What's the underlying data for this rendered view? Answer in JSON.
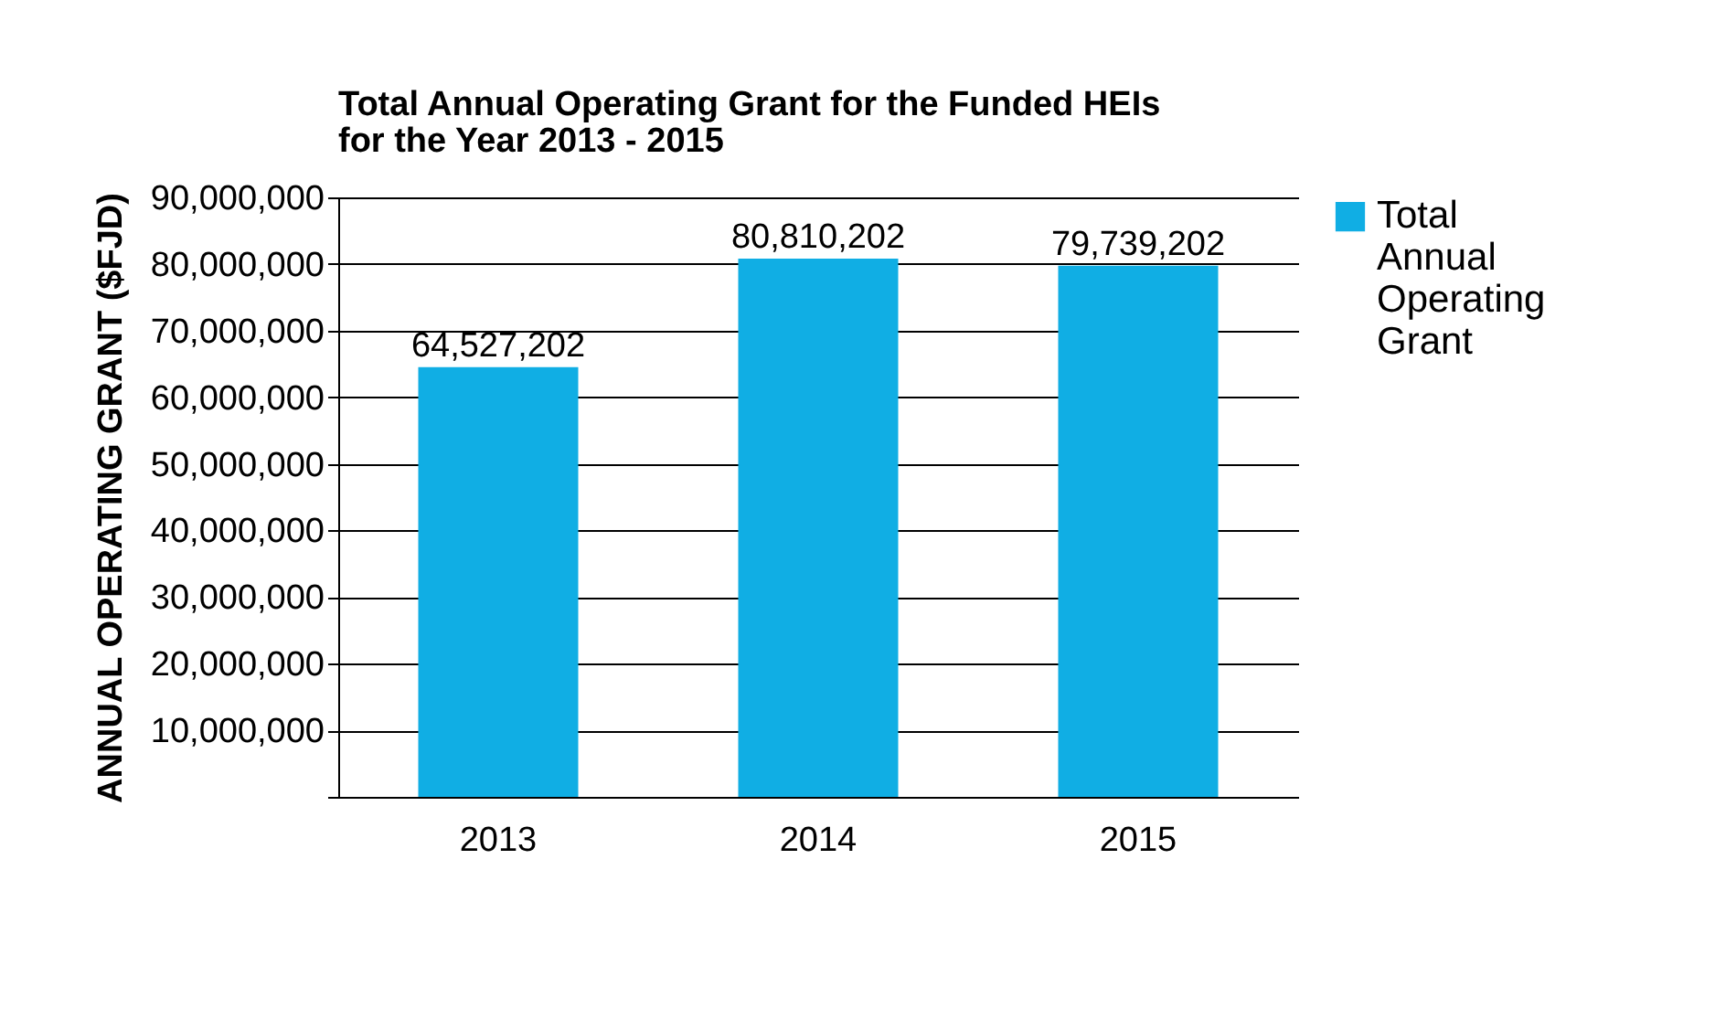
{
  "chart_data": {
    "type": "bar",
    "title": "Total Annual Operating Grant for the Funded HEIs for the Year 2013 - 2015",
    "ylabel": "ANNUAL OPERATING GRANT ($FJD)",
    "categories": [
      "2013",
      "2014",
      "2015"
    ],
    "series": [
      {
        "name": "Total Annual Operating Grant",
        "color": "#10aee4",
        "values": [
          64527202,
          80810202,
          79739202
        ],
        "value_labels": [
          "64,527,202",
          "80,810,202",
          "79,739,202"
        ]
      }
    ],
    "ylim": [
      0,
      90000000
    ],
    "yticks": [
      {
        "value": 0,
        "label": null
      },
      {
        "value": 10000000,
        "label": "10,000,000"
      },
      {
        "value": 20000000,
        "label": "20,000,000"
      },
      {
        "value": 30000000,
        "label": "30,000,000"
      },
      {
        "value": 40000000,
        "label": "40,000,000"
      },
      {
        "value": 50000000,
        "label": "50,000,000"
      },
      {
        "value": 60000000,
        "label": "60,000,000"
      },
      {
        "value": 70000000,
        "label": "70,000,000"
      },
      {
        "value": 80000000,
        "label": "80,000,000"
      },
      {
        "value": 90000000,
        "label": "90,000,000"
      }
    ],
    "grid": "y",
    "legend": "right"
  }
}
